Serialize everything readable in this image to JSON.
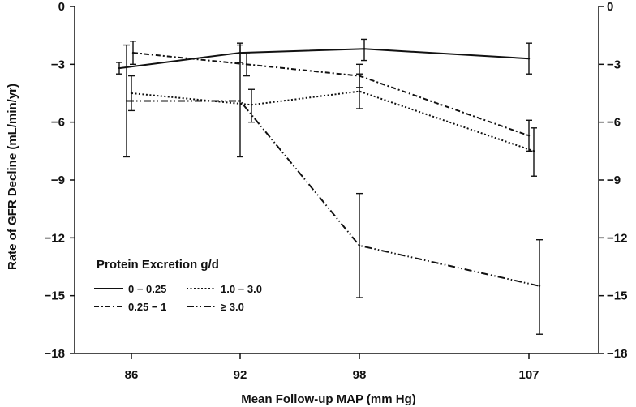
{
  "chart_data": {
    "type": "line",
    "xlabel": "Mean Follow-up MAP (mm Hg)",
    "ylabel": "Rate of GFR Decline  (mL/min/yr)",
    "categories": [
      "86",
      "92",
      "98",
      "107"
    ],
    "ylim": [
      -18,
      0
    ],
    "yticks": [
      0,
      -3,
      -6,
      -9,
      -12,
      -15,
      -18
    ],
    "ytick_labels": [
      "0",
      "−3",
      "−6",
      "−9",
      "−12",
      "−15",
      "−18"
    ],
    "grid": false,
    "legend": {
      "title": "Protein Excretion g/d",
      "placement": "bottom-left"
    },
    "series": [
      {
        "name": "0 − 0.25",
        "dash": "solid",
        "values": [
          -3.2,
          -2.4,
          -2.2,
          -2.7
        ],
        "lower": [
          -3.5,
          -2.9,
          -2.8,
          -3.5
        ],
        "upper": [
          -2.9,
          -1.9,
          -1.7,
          -1.9
        ]
      },
      {
        "name": "0.25 − 1",
        "dash": "dashdot",
        "values": [
          -2.4,
          -3.0,
          -3.6,
          -6.7
        ],
        "lower": [
          -3.0,
          -3.6,
          -4.2,
          -7.5
        ],
        "upper": [
          -1.8,
          -2.4,
          -3.0,
          -5.9
        ]
      },
      {
        "name": "1.0 − 3.0",
        "dash": "dotted",
        "values": [
          -4.5,
          -5.1,
          -4.4,
          -7.5
        ],
        "lower": [
          -5.4,
          -6.0,
          -5.3,
          -8.8
        ],
        "upper": [
          -3.6,
          -4.3,
          -3.5,
          -6.3
        ]
      },
      {
        "name": "≥ 3.0",
        "dash": "dashdotdot",
        "values": [
          -4.9,
          -4.9,
          -12.4,
          -14.5
        ],
        "lower": [
          -7.8,
          -7.8,
          -15.1,
          -17.0
        ],
        "upper": [
          -2.0,
          -2.0,
          -9.7,
          -12.1
        ]
      }
    ]
  }
}
